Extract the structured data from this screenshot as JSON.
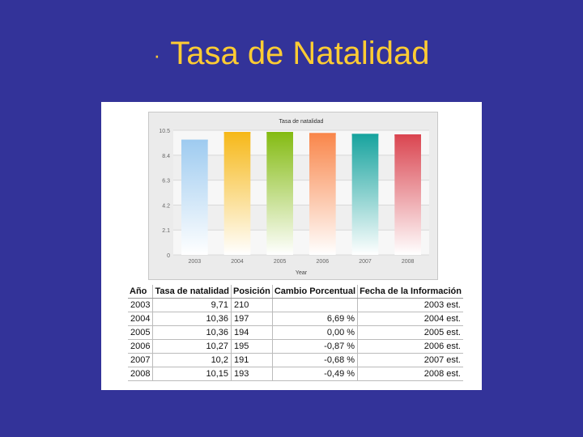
{
  "slide": {
    "bullet": "·",
    "title": "Tasa de Natalidad"
  },
  "chart_data": {
    "type": "bar",
    "title": "Tasa de natalidad",
    "xlabel": "Year",
    "ylabel": "",
    "categories": [
      "2003",
      "2004",
      "2005",
      "2006",
      "2007",
      "2008"
    ],
    "values": [
      9.71,
      10.36,
      10.36,
      10.27,
      10.2,
      10.15
    ],
    "ylim": [
      0,
      10.5
    ],
    "yticks": [
      "0",
      "2.1",
      "4.2",
      "6.3",
      "8.4",
      "10.5"
    ],
    "grid": true,
    "colors": [
      "#9ecbf0",
      "#f6b818",
      "#84bb12",
      "#f9864a",
      "#17a39e",
      "#da4550"
    ]
  },
  "table": {
    "headers": [
      "Año",
      "Tasa de natalidad",
      "Posición",
      "Cambio Porcentual",
      "Fecha de la Información"
    ],
    "rows": [
      [
        "2003",
        "9,71",
        "210",
        "",
        "2003 est."
      ],
      [
        "2004",
        "10,36",
        "197",
        "6,69 %",
        "2004 est."
      ],
      [
        "2005",
        "10,36",
        "194",
        "0,00 %",
        "2005 est."
      ],
      [
        "2006",
        "10,27",
        "195",
        "-0,87 %",
        "2006 est."
      ],
      [
        "2007",
        "10,2",
        "191",
        "-0,68 %",
        "2007 est."
      ],
      [
        "2008",
        "10,15",
        "193",
        "-0,49 %",
        "2008 est."
      ]
    ]
  }
}
